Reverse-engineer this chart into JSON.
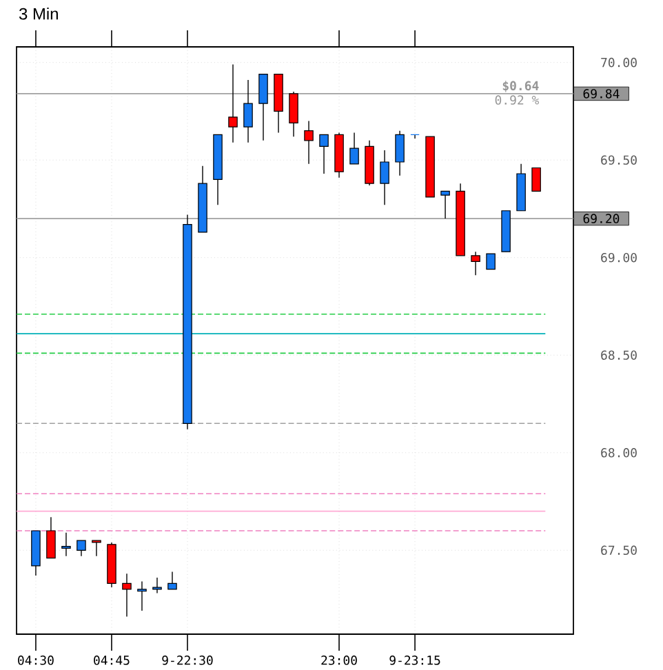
{
  "chart_data": {
    "type": "candlestick",
    "title": "3 Min",
    "categories": [
      "04:30",
      null,
      null,
      null,
      null,
      "04:45",
      null,
      null,
      null,
      null,
      "9-22:30",
      null,
      null,
      null,
      null,
      null,
      null,
      null,
      null,
      null,
      "23:00",
      null,
      null,
      null,
      null,
      "9-23:15",
      null,
      null,
      null,
      null,
      null,
      null,
      null,
      null
    ],
    "ohlc": [
      [
        67.42,
        67.6,
        67.37,
        67.6
      ],
      [
        67.6,
        67.67,
        67.46,
        67.46
      ],
      [
        67.51,
        67.59,
        67.47,
        67.52
      ],
      [
        67.5,
        67.55,
        67.47,
        67.55
      ],
      [
        67.55,
        67.55,
        67.47,
        67.54
      ],
      [
        67.53,
        67.54,
        67.31,
        67.33
      ],
      [
        67.33,
        67.38,
        67.16,
        67.3
      ],
      [
        67.29,
        67.34,
        67.19,
        67.3
      ],
      [
        67.3,
        67.36,
        67.28,
        67.31
      ],
      [
        67.3,
        67.39,
        67.3,
        67.33
      ],
      [
        68.15,
        69.22,
        68.12,
        69.17
      ],
      [
        69.13,
        69.47,
        69.13,
        69.38
      ],
      [
        69.4,
        69.63,
        69.27,
        69.63
      ],
      [
        69.72,
        69.99,
        69.59,
        69.67
      ],
      [
        69.67,
        69.91,
        69.59,
        69.79
      ],
      [
        69.79,
        69.94,
        69.6,
        69.94
      ],
      [
        69.94,
        69.94,
        69.64,
        69.75
      ],
      [
        69.84,
        69.85,
        69.62,
        69.69
      ],
      [
        69.65,
        69.7,
        69.48,
        69.6
      ],
      [
        69.57,
        69.63,
        69.43,
        69.63
      ],
      [
        69.63,
        69.64,
        69.41,
        69.44
      ],
      [
        69.48,
        69.64,
        69.48,
        69.56
      ],
      [
        69.57,
        69.6,
        69.37,
        69.38
      ],
      [
        69.38,
        69.55,
        69.27,
        69.49
      ],
      [
        69.49,
        69.65,
        69.42,
        69.63
      ],
      [
        69.63,
        69.63,
        69.61,
        69.63
      ],
      [
        69.62,
        69.62,
        69.31,
        69.31
      ],
      [
        69.32,
        69.34,
        69.2,
        69.34
      ],
      [
        69.34,
        69.38,
        69.01,
        69.01
      ],
      [
        69.01,
        69.03,
        68.91,
        68.98
      ],
      [
        68.94,
        69.02,
        68.94,
        69.02
      ],
      [
        69.03,
        69.24,
        69.03,
        69.24
      ],
      [
        69.24,
        69.48,
        69.24,
        69.43
      ],
      [
        69.46,
        69.46,
        69.34,
        69.34
      ]
    ],
    "colors": [
      "#1478f0",
      "#ff0000",
      "#1478f0",
      "#1478f0",
      "#ff0000",
      "#ff0000",
      "#ff0000",
      "#1478f0",
      "#1478f0",
      "#1478f0",
      "#1478f0",
      "#1478f0",
      "#1478f0",
      "#ff0000",
      "#1478f0",
      "#1478f0",
      "#ff0000",
      "#ff0000",
      "#ff0000",
      "#1478f0",
      "#ff0000",
      "#1478f0",
      "#ff0000",
      "#1478f0",
      "#1478f0",
      "#1478f0",
      "#ff0000",
      "#1478f0",
      "#ff0000",
      "#ff0000",
      "#1478f0",
      "#1478f0",
      "#1478f0",
      "#ff0000"
    ],
    "ylim": [
      67.07,
      70.08
    ],
    "yticks": [
      {
        "value": 67.5,
        "label": "67.50"
      },
      {
        "value": 68.0,
        "label": "68.00"
      },
      {
        "value": 68.5,
        "label": "68.50"
      },
      {
        "value": 69.0,
        "label": "69.00"
      },
      {
        "value": 69.5,
        "label": "69.50"
      },
      {
        "value": 70.0,
        "label": "70.00"
      }
    ],
    "grid": true,
    "ref_lines": [
      {
        "axis": "y",
        "value": 69.84,
        "label": "69.84",
        "color": "#a0a0a0",
        "line_style": "solid"
      },
      {
        "axis": "y",
        "value": 69.2,
        "label": "69.20",
        "color": "#a0a0a0",
        "line_style": "solid"
      },
      {
        "axis": "y",
        "value": 68.71,
        "color": "#22cc44",
        "line_style": "dashed"
      },
      {
        "axis": "y",
        "value": 68.61,
        "color": "#00b0b8",
        "line_style": "solid"
      },
      {
        "axis": "y",
        "value": 68.51,
        "color": "#22cc44",
        "line_style": "dashed"
      },
      {
        "axis": "y",
        "value": 68.15,
        "color": "#a0a0a0",
        "line_style": "dashed"
      },
      {
        "axis": "y",
        "value": 67.79,
        "color": "#f080c0",
        "line_style": "dashed"
      },
      {
        "axis": "y",
        "value": 67.7,
        "color": "#ffaad4",
        "line_style": "solid"
      },
      {
        "axis": "y",
        "value": 67.6,
        "color": "#f080c0",
        "line_style": "dashed"
      }
    ],
    "annotations": [
      "$0.64",
      "0.92 %"
    ]
  }
}
